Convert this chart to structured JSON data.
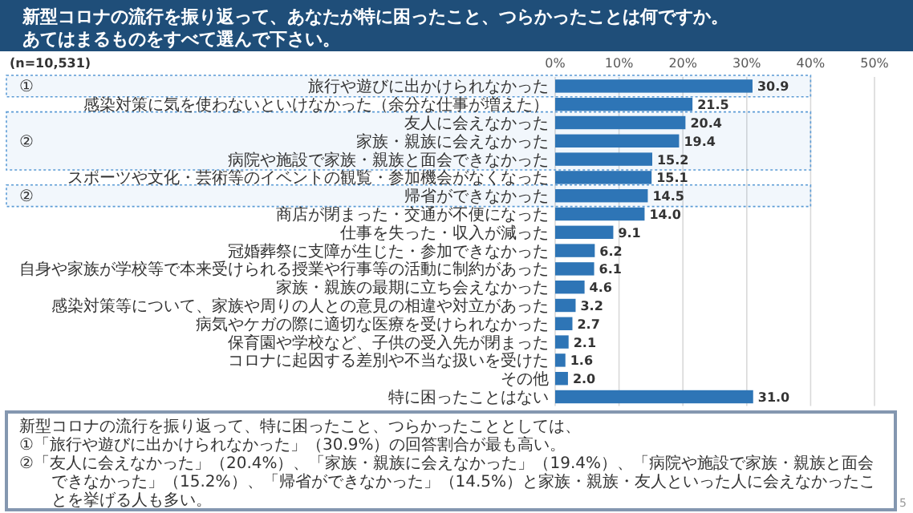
{
  "chart_data": {
    "type": "bar",
    "orientation": "horizontal",
    "title": "新型コロナの流行を振り返って、あなたが特に困ったこと、つらかったことは何ですか。",
    "subtitle": "あてはまるものをすべて選んで下さい。",
    "categories": [
      "旅行や遊びに出かけられなかった",
      "感染対策に気を使わないといけなかった（余分な仕事が増えた）",
      "友人に会えなかった",
      "家族・親族に会えなかった",
      "病院や施設で家族・親族と面会できなかった",
      "スポーツや文化・芸術等のイベントの観覧・参加機会がなくなった",
      "帰省ができなかった",
      "商店が閉まった・交通が不便になった",
      "仕事を失った・収入が減った",
      "冠婚葬祭に支障が生じた・参加できなかった",
      "自身や家族が学校等で本来受けられる授業や行事等の活動に制約があった",
      "家族・親族の最期に立ち会えなかった",
      "感染対策等について、家族や周りの人との意見の相違や対立があった",
      "病気やケガの際に適切な医療を受けられなかった",
      "保育園や学校など、子供の受入先が閉まった",
      "コロナに起因する差別や不当な扱いを受けた",
      "その他",
      "特に困ったことはない"
    ],
    "values": [
      30.9,
      21.5,
      20.4,
      19.4,
      15.2,
      15.1,
      14.5,
      14.0,
      9.1,
      6.2,
      6.1,
      4.6,
      3.2,
      2.7,
      2.1,
      1.6,
      2.0,
      31.0
    ],
    "color": "#2e75b6",
    "value_labels": [
      "30.9",
      "21.5",
      "20.4",
      "19.4",
      "15.2",
      "15.1",
      "14.5",
      "14.0",
      "9.1",
      "6.2",
      "6.1",
      "4.6",
      "3.2",
      "2.7",
      "2.1",
      "1.6",
      "2.0",
      "31.0"
    ],
    "xlim": [
      0,
      50
    ],
    "xticks": [
      {
        "value": 0,
        "label": "0%"
      },
      {
        "value": 10,
        "label": "10%"
      },
      {
        "value": 20,
        "label": "20%"
      },
      {
        "value": 30,
        "label": "30%"
      },
      {
        "value": 40,
        "label": "40%"
      },
      {
        "value": 50,
        "label": "50%"
      }
    ],
    "grid": "x",
    "bands": [
      {
        "axis": "y",
        "from": "旅行や遊びに出かけられなかった",
        "to": "旅行や遊びに出かけられなかった",
        "label": "①",
        "color": "#5b9bd5"
      },
      {
        "axis": "y",
        "from": "友人に会えなかった",
        "to": "病院や施設で家族・親族と面会できなかった",
        "label": "②",
        "color": "#5b9bd5"
      },
      {
        "axis": "y",
        "from": "帰省ができなかった",
        "to": "帰省ができなかった",
        "label": "②",
        "color": "#5b9bd5"
      }
    ],
    "annotations": [
      "(n=10,531)",
      "新型コロナの流行を振り返って、特に困ったこと、つらかったこととしては、",
      "①「旅行や遊びに出かけられなかった」（30.9%）の回答割合が最も高い。",
      "②「友人に会えなかった」（20.4%）、「家族・親族に会えなかった」（19.4%）、「病院や施設で家族・親族と面会できなかった」（15.2%）、「帰省ができなかった」（14.5%）と家族・親族・友人といった人に会えなかったことを挙げる人も多い。",
      "5"
    ]
  }
}
